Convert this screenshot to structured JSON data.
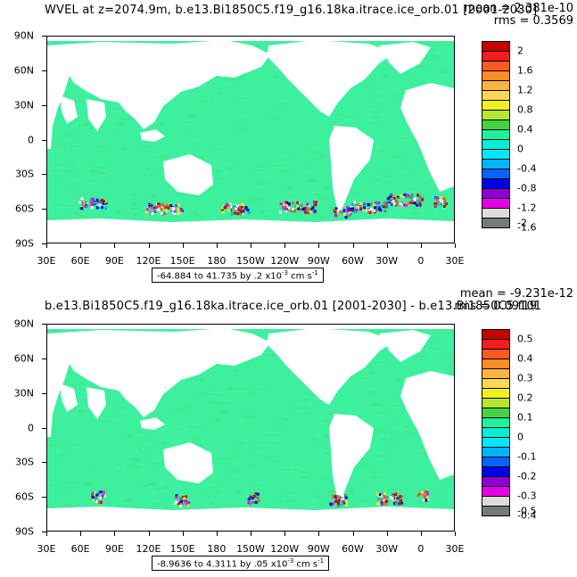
{
  "panels": [
    {
      "title": "WVEL at z=2074.9m, b.e13.Bi1850C5.f19_g16.18ka.itrace.ice_orb.01 [2001-2030]",
      "mean": "mean = 2.381e-10",
      "rms": "rms = 0.3569",
      "range_prefix": "-64.884 to 41.735 by .2 x10",
      "range_exp": "-3",
      "range_units": " cm s",
      "range_units_exp": "-1",
      "colorbar_labels": [
        "2",
        "1.6",
        "1.2",
        "0.8",
        "0.4",
        "0",
        "-0.4",
        "-0.8",
        "-1.2",
        "-1.6",
        "-2"
      ]
    },
    {
      "title": "b.e13.Bi1850C5.f19_g16.18ka.itrace.ice_orb.01 [2001-2030] - b.e13.Bi1850C5.f19",
      "mean": "mean = -9.231e-12",
      "rms": "rms = 0.09101",
      "range_prefix": "-8.9636 to 4.3111 by .05 x10",
      "range_exp": "-3",
      "range_units": " cm s",
      "range_units_exp": "-1",
      "colorbar_labels": [
        "0.5",
        "0.4",
        "0.3",
        "0.2",
        "0.1",
        "0",
        "-0.1",
        "-0.2",
        "-0.3",
        "-0.4",
        "-0.5"
      ]
    }
  ],
  "axes": {
    "y_ticks": [
      "90N",
      "60N",
      "30N",
      "0",
      "30S",
      "60S",
      "90S"
    ],
    "x_ticks": [
      "30E",
      "60E",
      "90E",
      "120E",
      "150E",
      "180",
      "150W",
      "120W",
      "90W",
      "60W",
      "30W",
      "0",
      "30E"
    ]
  },
  "colorbar_colors": [
    "#c80000",
    "#f01e1e",
    "#ff5a1e",
    "#ff8c28",
    "#ffb43c",
    "#ffd850",
    "#f0f01e",
    "#b4e632",
    "#46d246",
    "#1ef0a0",
    "#00f0d2",
    "#00e6ff",
    "#00b4ff",
    "#0064ff",
    "#0000e6",
    "#8c00d2",
    "#e600e6",
    "#dcdcdc",
    "#787878"
  ],
  "map_colors": {
    "ocean": "#3cf09e",
    "ocean_alt": "#46e68c",
    "land": "#ffffff"
  }
}
